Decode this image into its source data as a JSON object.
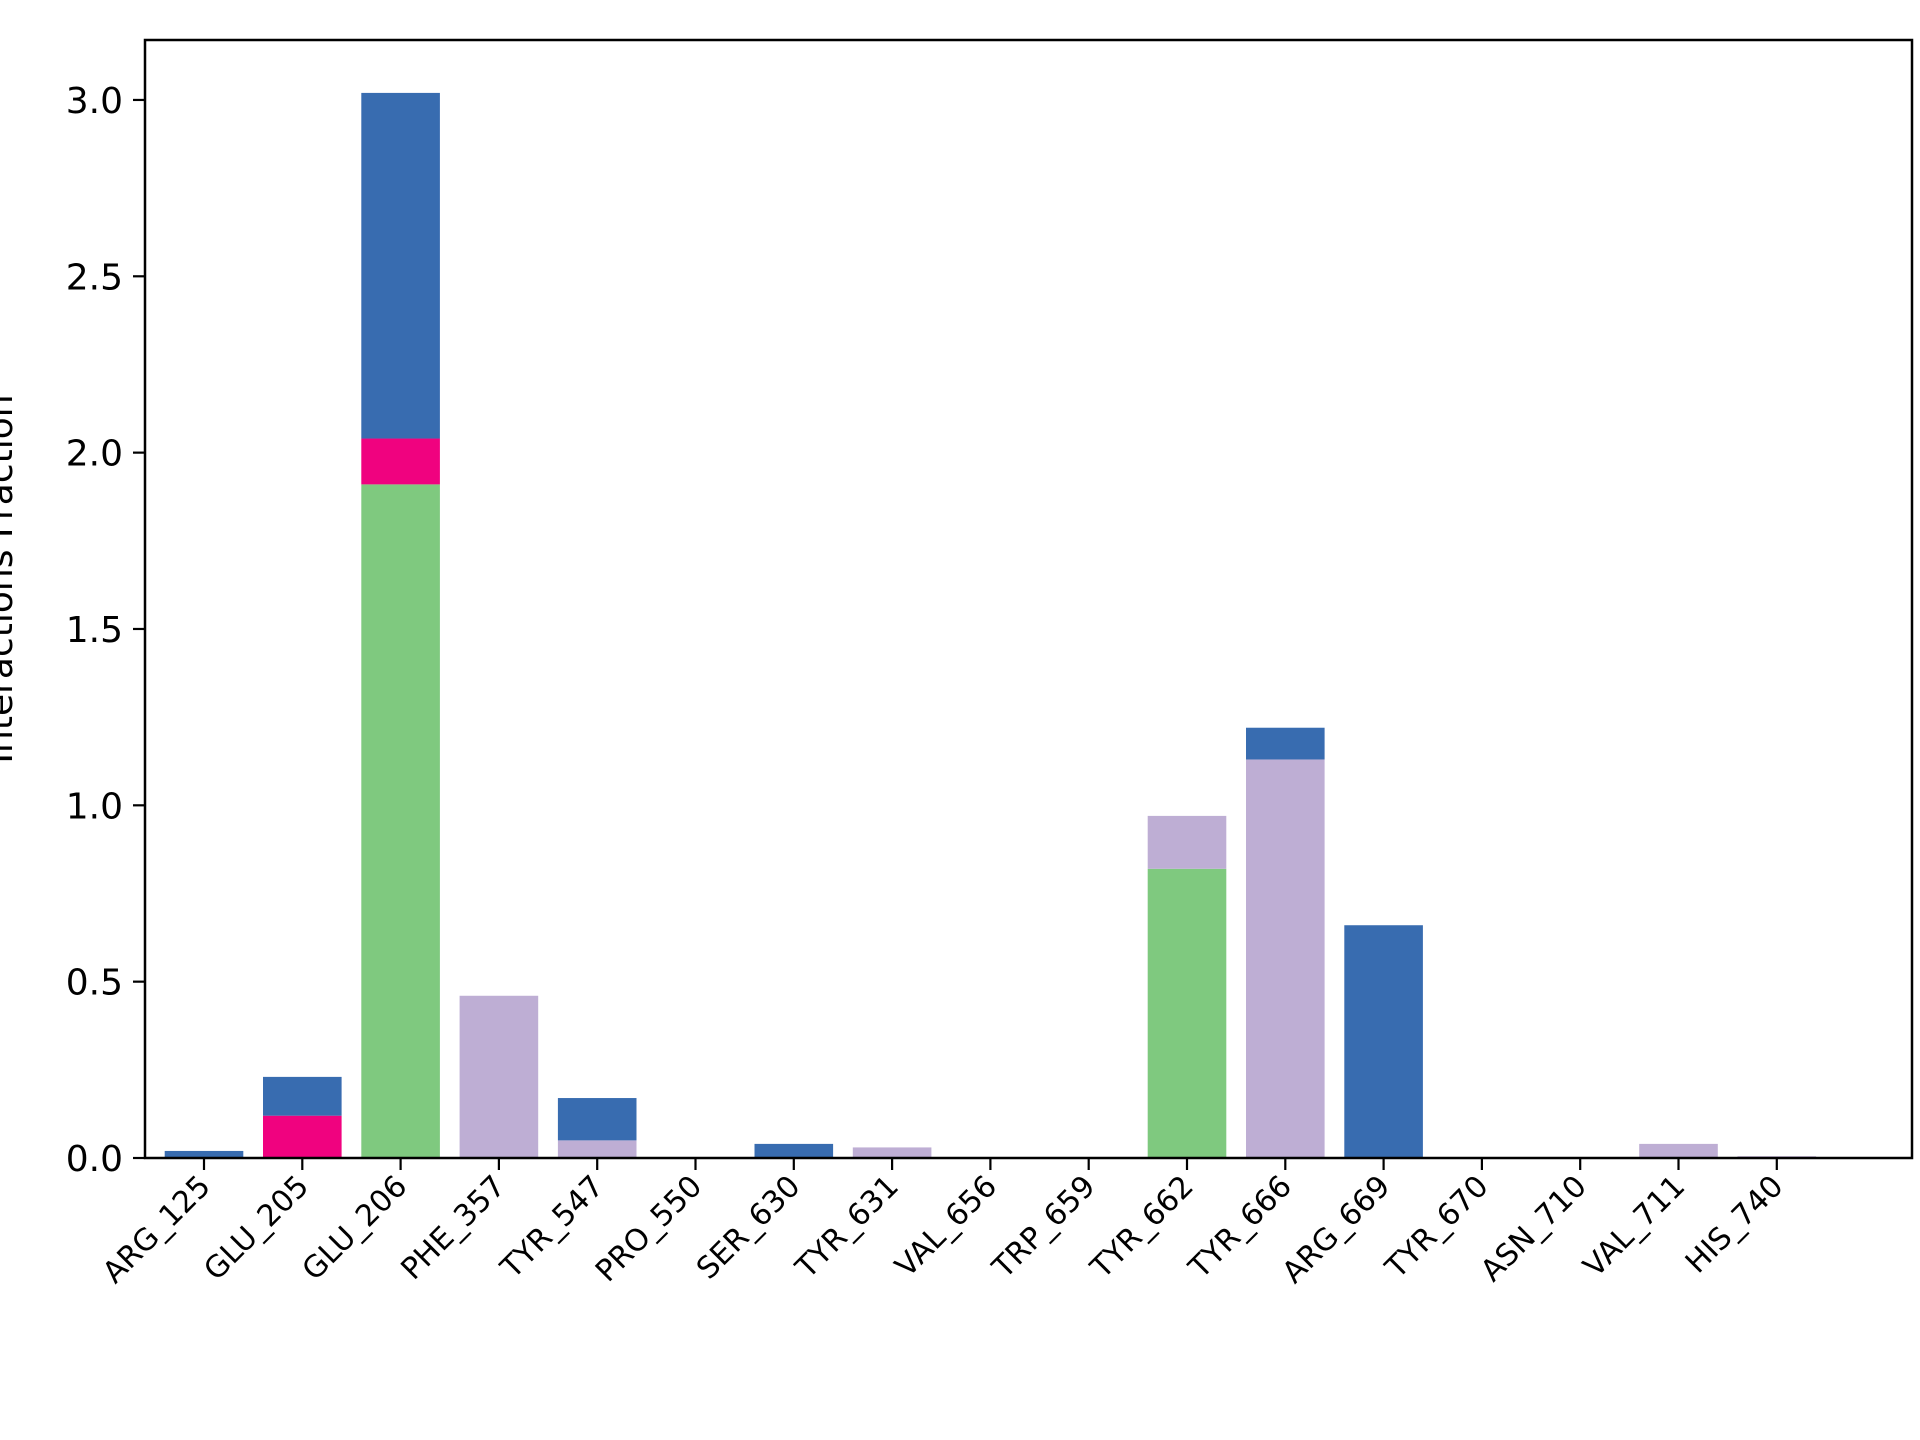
{
  "chart_data": {
    "type": "bar",
    "stacked": true,
    "title": "",
    "xlabel": "",
    "ylabel": "Interactions Fraction",
    "ylim": [
      0,
      3.17
    ],
    "yticks": [
      "0.0",
      "0.5",
      "1.0",
      "1.5",
      "2.0",
      "2.5",
      "3.0"
    ],
    "categories": [
      "ARG_125",
      "GLU_205",
      "GLU_206",
      "PHE_357",
      "TYR_547",
      "PRO_550",
      "SER_630",
      "TYR_631",
      "VAL_656",
      "TRP_659",
      "TYR_662",
      "TYR_666",
      "ARG_669",
      "TYR_670",
      "ASN_710",
      "VAL_711",
      "HIS_740"
    ],
    "series": [
      {
        "color": "#7fc97f",
        "values": [
          0,
          0,
          1.91,
          0,
          0,
          0,
          0,
          0,
          0,
          0,
          0.82,
          0,
          0,
          0,
          0,
          0,
          0
        ]
      },
      {
        "color": "#beaed4",
        "values": [
          0,
          0,
          0,
          0.46,
          0.05,
          0,
          0,
          0.03,
          0,
          0,
          0.15,
          1.13,
          0,
          0,
          0,
          0.04,
          0.005
        ]
      },
      {
        "color": "#f0027f",
        "values": [
          0,
          0.12,
          0.13,
          0,
          0,
          0,
          0,
          0,
          0,
          0,
          0,
          0,
          0,
          0,
          0,
          0,
          0
        ]
      },
      {
        "color": "#386cb0",
        "values": [
          0.02,
          0.11,
          0.98,
          0,
          0.12,
          0,
          0.04,
          0,
          0,
          0,
          0,
          0.09,
          0.66,
          0,
          0,
          0,
          0
        ]
      }
    ],
    "grid": false,
    "legend": false
  }
}
